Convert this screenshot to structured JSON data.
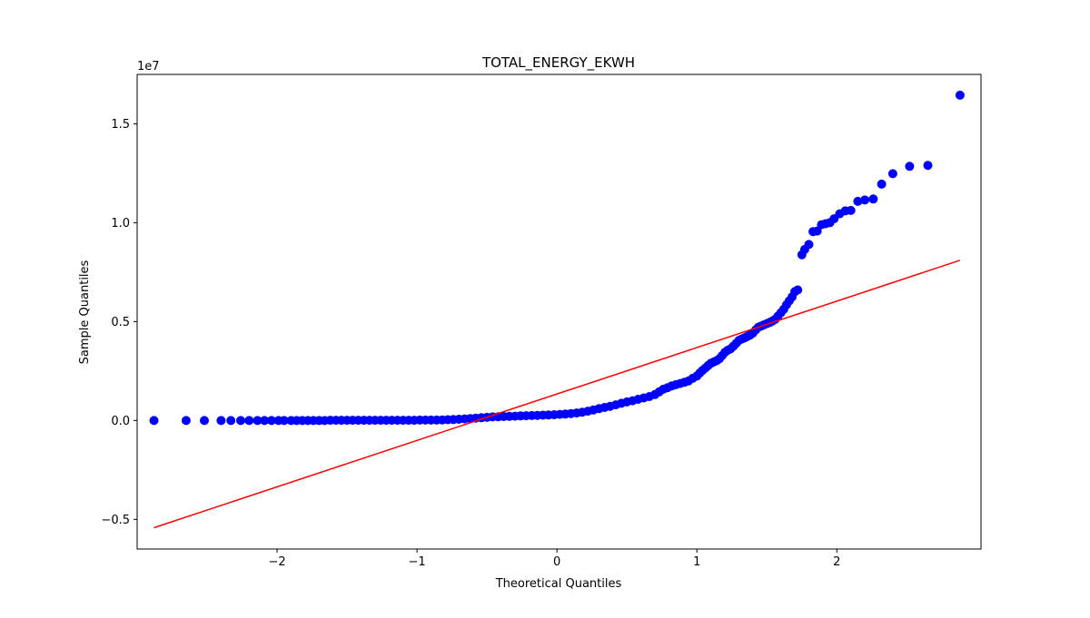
{
  "chart_data": {
    "type": "scatter",
    "title": "TOTAL_ENERGY_EKWH",
    "xlabel": "Theoretical Quantiles",
    "ylabel": "Sample Quantiles",
    "y_offset_text": "1e7",
    "xlim": [
      -3.0,
      3.03
    ],
    "ylim": [
      -0.65,
      1.75
    ],
    "x_ticks": [
      -2,
      -1,
      0,
      1,
      2
    ],
    "x_tick_labels": [
      "−2",
      "−1",
      "0",
      "1",
      "2"
    ],
    "y_ticks": [
      -0.5,
      0.0,
      0.5,
      1.0,
      1.5
    ],
    "y_tick_labels": [
      "−0.5",
      "0.0",
      "0.5",
      "1.0",
      "1.5"
    ],
    "grid": false,
    "legend": "none",
    "reference_line": {
      "color": "#ff0000",
      "x": [
        -2.88,
        2.88
      ],
      "y": [
        -0.542,
        0.81
      ]
    },
    "series": [
      {
        "color": "#0000ff",
        "points": [
          [
            -2.88,
            0.0
          ],
          [
            -2.65,
            0.0
          ],
          [
            -2.52,
            0.0
          ],
          [
            -2.4,
            0.0
          ],
          [
            -2.33,
            0.0
          ],
          [
            -2.26,
            0.0
          ],
          [
            -2.2,
            0.0
          ],
          [
            -2.14,
            0.0
          ],
          [
            -2.09,
            0.0
          ],
          [
            -2.04,
            0.0
          ],
          [
            -1.99,
            0.0
          ],
          [
            -1.95,
            0.0
          ],
          [
            -1.9,
            0.0
          ],
          [
            -1.86,
            0.0
          ],
          [
            -1.82,
            0.0
          ],
          [
            -1.78,
            0.0
          ],
          [
            -1.74,
            0.0
          ],
          [
            -1.7,
            0.0
          ],
          [
            -1.66,
            0.0
          ],
          [
            -1.62,
            0.001
          ],
          [
            -1.58,
            0.001
          ],
          [
            -1.54,
            0.001
          ],
          [
            -1.5,
            0.001
          ],
          [
            -1.46,
            0.001
          ],
          [
            -1.42,
            0.001
          ],
          [
            -1.38,
            0.001
          ],
          [
            -1.34,
            0.001
          ],
          [
            -1.3,
            0.001
          ],
          [
            -1.26,
            0.001
          ],
          [
            -1.22,
            0.001
          ],
          [
            -1.18,
            0.001
          ],
          [
            -1.14,
            0.001
          ],
          [
            -1.1,
            0.001
          ],
          [
            -1.06,
            0.001
          ],
          [
            -1.02,
            0.001
          ],
          [
            -0.98,
            0.002
          ],
          [
            -0.94,
            0.002
          ],
          [
            -0.9,
            0.002
          ],
          [
            -0.86,
            0.002
          ],
          [
            -0.82,
            0.003
          ],
          [
            -0.78,
            0.004
          ],
          [
            -0.74,
            0.005
          ],
          [
            -0.7,
            0.006
          ],
          [
            -0.66,
            0.008
          ],
          [
            -0.62,
            0.01
          ],
          [
            -0.58,
            0.012
          ],
          [
            -0.54,
            0.014
          ],
          [
            -0.5,
            0.016
          ],
          [
            -0.46,
            0.018
          ],
          [
            -0.42,
            0.019
          ],
          [
            -0.38,
            0.02
          ],
          [
            -0.34,
            0.021
          ],
          [
            -0.3,
            0.022
          ],
          [
            -0.26,
            0.023
          ],
          [
            -0.22,
            0.024
          ],
          [
            -0.18,
            0.025
          ],
          [
            -0.14,
            0.026
          ],
          [
            -0.1,
            0.027
          ],
          [
            -0.06,
            0.028
          ],
          [
            -0.02,
            0.029
          ],
          [
            0.02,
            0.031
          ],
          [
            0.06,
            0.033
          ],
          [
            0.1,
            0.035
          ],
          [
            0.14,
            0.038
          ],
          [
            0.18,
            0.042
          ],
          [
            0.22,
            0.047
          ],
          [
            0.26,
            0.053
          ],
          [
            0.3,
            0.06
          ],
          [
            0.34,
            0.066
          ],
          [
            0.38,
            0.072
          ],
          [
            0.42,
            0.079
          ],
          [
            0.46,
            0.087
          ],
          [
            0.5,
            0.094
          ],
          [
            0.54,
            0.1
          ],
          [
            0.58,
            0.107
          ],
          [
            0.62,
            0.114
          ],
          [
            0.66,
            0.121
          ],
          [
            0.7,
            0.131
          ],
          [
            0.73,
            0.145
          ],
          [
            0.76,
            0.158
          ],
          [
            0.79,
            0.166
          ],
          [
            0.82,
            0.175
          ],
          [
            0.85,
            0.181
          ],
          [
            0.88,
            0.187
          ],
          [
            0.91,
            0.193
          ],
          [
            0.94,
            0.2
          ],
          [
            0.97,
            0.213
          ],
          [
            1.0,
            0.225
          ],
          [
            1.02,
            0.24
          ],
          [
            1.04,
            0.253
          ],
          [
            1.06,
            0.265
          ],
          [
            1.08,
            0.278
          ],
          [
            1.1,
            0.29
          ],
          [
            1.12,
            0.296
          ],
          [
            1.14,
            0.302
          ],
          [
            1.16,
            0.312
          ],
          [
            1.18,
            0.328
          ],
          [
            1.2,
            0.345
          ],
          [
            1.22,
            0.355
          ],
          [
            1.24,
            0.362
          ],
          [
            1.26,
            0.375
          ],
          [
            1.28,
            0.39
          ],
          [
            1.3,
            0.405
          ],
          [
            1.32,
            0.412
          ],
          [
            1.34,
            0.418
          ],
          [
            1.36,
            0.425
          ],
          [
            1.38,
            0.432
          ],
          [
            1.4,
            0.442
          ],
          [
            1.42,
            0.458
          ],
          [
            1.44,
            0.472
          ],
          [
            1.46,
            0.478
          ],
          [
            1.48,
            0.484
          ],
          [
            1.5,
            0.49
          ],
          [
            1.52,
            0.496
          ],
          [
            1.54,
            0.503
          ],
          [
            1.56,
            0.512
          ],
          [
            1.58,
            0.528
          ],
          [
            1.6,
            0.545
          ],
          [
            1.62,
            0.562
          ],
          [
            1.64,
            0.585
          ],
          [
            1.66,
            0.605
          ],
          [
            1.68,
            0.625
          ],
          [
            1.7,
            0.652
          ],
          [
            1.72,
            0.66
          ],
          [
            1.75,
            0.838
          ],
          [
            1.77,
            0.865
          ],
          [
            1.8,
            0.89
          ],
          [
            1.83,
            0.955
          ],
          [
            1.86,
            0.958
          ],
          [
            1.89,
            0.99
          ],
          [
            1.92,
            0.995
          ],
          [
            1.95,
            1.0
          ],
          [
            1.98,
            1.02
          ],
          [
            2.02,
            1.045
          ],
          [
            2.06,
            1.06
          ],
          [
            2.1,
            1.062
          ],
          [
            2.15,
            1.108
          ],
          [
            2.2,
            1.115
          ],
          [
            2.26,
            1.12
          ],
          [
            2.32,
            1.195
          ],
          [
            2.4,
            1.248
          ],
          [
            2.52,
            1.285
          ],
          [
            2.65,
            1.29
          ],
          [
            2.88,
            1.645
          ]
        ]
      }
    ]
  }
}
